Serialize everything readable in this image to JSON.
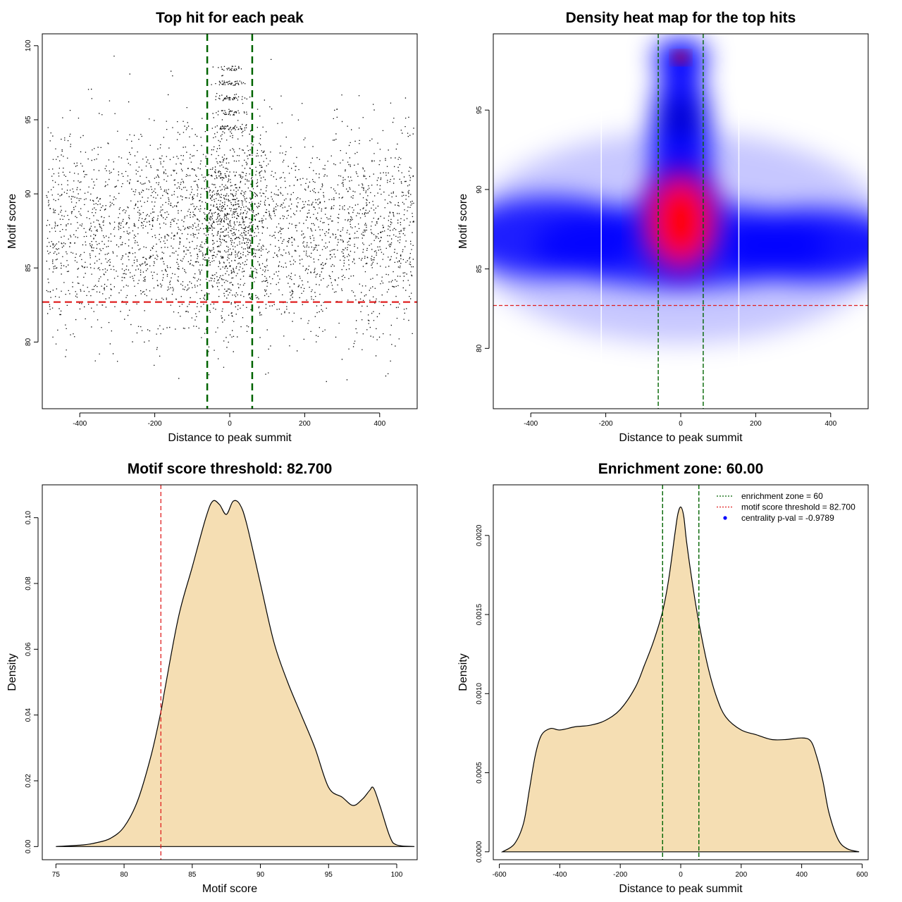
{
  "colors": {
    "points": "#000000",
    "threshold_line": "#e02020",
    "zone_line": "#006400",
    "density_fill": "#f5deb3",
    "heat_low": "#ffffff",
    "heat_mid": "#0000ff",
    "heat_high": "#ff0000",
    "legend_point": "#0000ff"
  },
  "chart_data": [
    {
      "type": "scatter",
      "title": "Top hit for each peak",
      "xlabel": "Distance to peak summit",
      "ylabel": "Motif score",
      "xlim": [
        -500,
        500
      ],
      "ylim": [
        75.5,
        100.8
      ],
      "xticks": [
        -400,
        -200,
        0,
        200,
        400
      ],
      "yticks": [
        80,
        85,
        90,
        95,
        100
      ],
      "grid": false,
      "points_description_values": {
        "x_range": [
          -490,
          490
        ],
        "score_center": 87.5,
        "central_zone_scores": [
          98.5,
          97.5,
          96.5,
          95.5,
          94.5
        ],
        "point_count_approx": 12000
      },
      "threshold_y": 82.7,
      "zone_x": [
        -60,
        60
      ]
    },
    {
      "type": "heatmap",
      "title": "Density heat map for the top hits",
      "xlabel": "Distance to peak summit",
      "ylabel": "Motif score",
      "xlim": [
        -500,
        500
      ],
      "ylim": [
        76.2,
        99.8
      ],
      "xticks": [
        -400,
        -200,
        0,
        200,
        400
      ],
      "yticks": [
        80,
        85,
        90,
        95
      ],
      "grid": false,
      "density_peaks": [
        {
          "x": 0,
          "y": 88,
          "level": 1.0
        },
        {
          "x": 0,
          "y": 98.3,
          "level": 0.75
        },
        {
          "x": 0,
          "y": 94.5,
          "level": 0.55
        },
        {
          "x": -350,
          "y": 87,
          "level": 0.5
        },
        {
          "x": 350,
          "y": 86.5,
          "level": 0.55
        }
      ],
      "threshold_y": 82.7,
      "zone_x": [
        -60,
        60
      ]
    },
    {
      "type": "area",
      "title": "Motif score threshold: 82.700",
      "xlabel": "Motif score",
      "ylabel": "Density",
      "xlim": [
        74,
        101.5
      ],
      "ylim": [
        -0.004,
        0.11
      ],
      "xticks": [
        75,
        80,
        85,
        90,
        95,
        100
      ],
      "yticks": [
        0.0,
        0.02,
        0.04,
        0.06,
        0.08,
        0.1
      ],
      "ytick_labels": [
        "0.00",
        "0.02",
        "0.04",
        "0.06",
        "0.08",
        "0.10"
      ],
      "grid": false,
      "x": [
        75,
        77,
        78,
        79,
        80,
        81,
        82,
        82.7,
        83,
        84,
        85,
        86,
        86.5,
        87,
        87.5,
        88,
        88.5,
        89,
        90,
        91,
        92,
        93,
        94,
        95,
        96,
        96.8,
        97.5,
        98,
        98.3,
        98.8,
        99.5,
        100,
        101.3
      ],
      "y": [
        0.0,
        0.0005,
        0.0012,
        0.0025,
        0.006,
        0.014,
        0.028,
        0.041,
        0.048,
        0.07,
        0.085,
        0.1,
        0.105,
        0.104,
        0.101,
        0.105,
        0.104,
        0.098,
        0.08,
        0.062,
        0.05,
        0.04,
        0.03,
        0.018,
        0.015,
        0.0125,
        0.0145,
        0.017,
        0.0178,
        0.012,
        0.003,
        0.0005,
        0.0
      ],
      "threshold_x": 82.7
    },
    {
      "type": "area",
      "title": "Enrichment zone: 60.00",
      "xlabel": "Distance to peak summit",
      "ylabel": "Density",
      "xlim": [
        -620,
        620
      ],
      "ylim": [
        -5e-05,
        0.00232
      ],
      "xticks": [
        -600,
        -400,
        -200,
        0,
        200,
        400,
        600
      ],
      "yticks": [
        0.0,
        0.0005,
        0.001,
        0.0015,
        0.002
      ],
      "ytick_labels": [
        "0.0000",
        "0.0005",
        "0.0010",
        "0.0015",
        "0.0020"
      ],
      "grid": false,
      "x": [
        -590,
        -550,
        -520,
        -500,
        -480,
        -460,
        -430,
        -400,
        -350,
        -300,
        -250,
        -200,
        -150,
        -120,
        -90,
        -60,
        -40,
        -20,
        -10,
        0,
        10,
        20,
        40,
        60,
        90,
        120,
        150,
        200,
        250,
        300,
        350,
        400,
        430,
        450,
        470,
        490,
        520,
        550,
        590
      ],
      "y": [
        0.0,
        5e-05,
        0.00018,
        0.0004,
        0.00062,
        0.00074,
        0.00078,
        0.00077,
        0.00079,
        0.0008,
        0.00083,
        0.0009,
        0.00104,
        0.00118,
        0.00133,
        0.00152,
        0.00172,
        0.002,
        0.00213,
        0.00218,
        0.00212,
        0.00195,
        0.00168,
        0.00145,
        0.00117,
        0.00097,
        0.00085,
        0.00077,
        0.00074,
        0.00071,
        0.00071,
        0.00072,
        0.0007,
        0.0006,
        0.00045,
        0.00025,
        8e-05,
        2e-05,
        0.0
      ],
      "zone_x": [
        -60,
        60
      ],
      "legend": [
        {
          "label": "enrichment zone = 60",
          "style": "dotted-line",
          "color_key": "zone_line"
        },
        {
          "label": "motif score threshold = 82.700",
          "style": "dotted-line",
          "color_key": "threshold_line"
        },
        {
          "label": "centrality p-val = -0.9789",
          "style": "point",
          "color_key": "legend_point"
        }
      ],
      "legend_position": "top-right"
    }
  ]
}
